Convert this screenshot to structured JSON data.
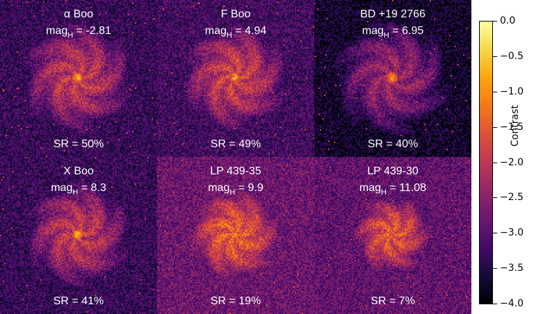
{
  "panels": [
    {
      "star": "α Boo",
      "mag_prefix": "mag",
      "mag_sub": "H",
      "mag_value": " = -2.81",
      "sr": "SR = 50%",
      "psf_peak": -0.6,
      "bg_level": -3.3,
      "halo": 0.55
    },
    {
      "star": "F Boo",
      "mag_prefix": "mag",
      "mag_sub": "H",
      "mag_value": " = 4.94",
      "sr": "SR = 49%",
      "psf_peak": -0.6,
      "bg_level": -3.2,
      "halo": 0.5
    },
    {
      "star": "BD +19 2766",
      "mag_prefix": "mag",
      "mag_sub": "H",
      "mag_value": " = 6.95",
      "sr": "SR = 40%",
      "psf_peak": -0.7,
      "bg_level": -3.7,
      "halo": 0.6
    },
    {
      "star": "X Boo",
      "mag_prefix": "mag",
      "mag_sub": "H",
      "mag_value": " = 8.3",
      "sr": "SR = 41%",
      "psf_peak": -0.6,
      "bg_level": -3.3,
      "halo": 0.5
    },
    {
      "star": "LP 439-35",
      "mag_prefix": "mag",
      "mag_sub": "H",
      "mag_value": " = 9.9",
      "sr": "SR = 19%",
      "psf_peak": -0.9,
      "bg_level": -2.8,
      "halo": 0.35
    },
    {
      "star": "LP 439-30",
      "mag_prefix": "mag",
      "mag_sub": "H",
      "mag_value": " = 11.08",
      "sr": "SR = 7%",
      "psf_peak": -1.6,
      "bg_level": -2.9,
      "halo": 0.25
    }
  ],
  "colorbar": {
    "label": "Contrast",
    "min": -4.0,
    "max": 0.0,
    "ticks": [
      "0.0",
      "−0.5",
      "−1.0",
      "−1.5",
      "−2.0",
      "−2.5",
      "−3.0",
      "−3.5",
      "−4.0"
    ],
    "colormap": "inferno"
  }
}
